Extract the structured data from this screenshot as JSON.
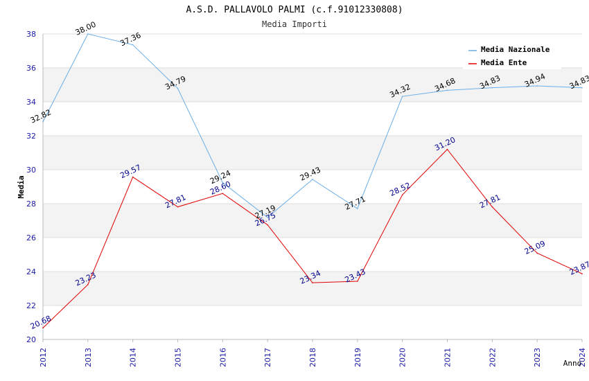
{
  "chart_data": {
    "type": "line",
    "title": "A.S.D. PALLAVOLO PALMI (c.f.91012330808)",
    "subtitle": "Media Importi",
    "xlabel": "Anno",
    "ylabel": "Media",
    "categories": [
      "2012",
      "2013",
      "2014",
      "2015",
      "2016",
      "2017",
      "2018",
      "2019",
      "2020",
      "2021",
      "2022",
      "2023",
      "2024"
    ],
    "ylim": [
      20,
      38
    ],
    "yticks": [
      "20",
      "22",
      "24",
      "26",
      "28",
      "30",
      "32",
      "34",
      "36",
      "38"
    ],
    "grid": true,
    "legend_position": "top-right",
    "series": [
      {
        "name": "Media Nazionale",
        "color": "#6aaee8",
        "label_color": "#000000",
        "values": [
          32.82,
          38.0,
          37.36,
          34.79,
          29.24,
          27.19,
          29.43,
          27.71,
          34.32,
          34.68,
          34.83,
          34.94,
          34.83
        ],
        "labels": [
          "32.82",
          "38.00",
          "37.36",
          "34.79",
          "29.24",
          "27.19",
          "29.43",
          "27.71",
          "34.32",
          "34.68",
          "34.83",
          "34.94",
          "34.83"
        ]
      },
      {
        "name": "Media Ente",
        "color": "#e00000",
        "label_color": "#00008b",
        "values": [
          20.68,
          23.23,
          29.57,
          27.81,
          28.6,
          26.75,
          23.34,
          23.43,
          28.52,
          31.2,
          27.81,
          25.09,
          23.87
        ],
        "labels": [
          "20.68",
          "23.23",
          "29.57",
          "27.81",
          "28.60",
          "26.75",
          "23.34",
          "23.43",
          "28.52",
          "31.20",
          "27.81",
          "25.09",
          "23.87"
        ]
      }
    ]
  }
}
